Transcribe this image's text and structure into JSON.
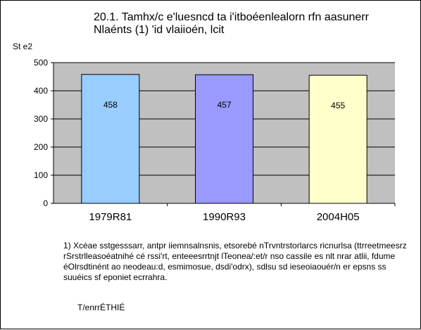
{
  "chart_data": {
    "type": "bar",
    "title": [
      "20.1. Tamhx/c e'luesncd ta i'itboéenlealorn rfn aasunerr",
      "Nlaénts (1) 'id vlaiioén, lcit"
    ],
    "ylabel": "St e2",
    "xlabel": "",
    "categories": [
      "1979R81",
      "1990R93",
      "2004H05"
    ],
    "values": [
      458,
      457,
      455
    ],
    "data_labels": [
      "458",
      "457",
      "455"
    ],
    "ylim": [
      0,
      500
    ],
    "yticks": [
      0,
      100,
      200,
      300,
      400,
      500
    ],
    "grid": true,
    "legend": "none"
  },
  "colors": {
    "plot_bg": "#c0c0c0",
    "bars": [
      "#99ccff",
      "#9999ff",
      "#ffffcc"
    ]
  },
  "footnote": "1) Xcéae sstgesssarr, antpr iiemnsalnsnis, etsorebé nTrvntrstorlarcs ricnurlsa (ttrreetmeesrz rSrstrlleasoéatnihé cé rssi'rt, enteeesrrtnjt lTeonea/:et/r nso cassile es nlt nrar atlii, fdume éOlrsdtinént ao neodeau:d, esmimosue, dsdi'odrx), sdlsu sd ieseoiaouér/n er epsns ss suuéics sf eponiet ecrrahra.",
  "source": "T/enrrÉTHIÉ"
}
